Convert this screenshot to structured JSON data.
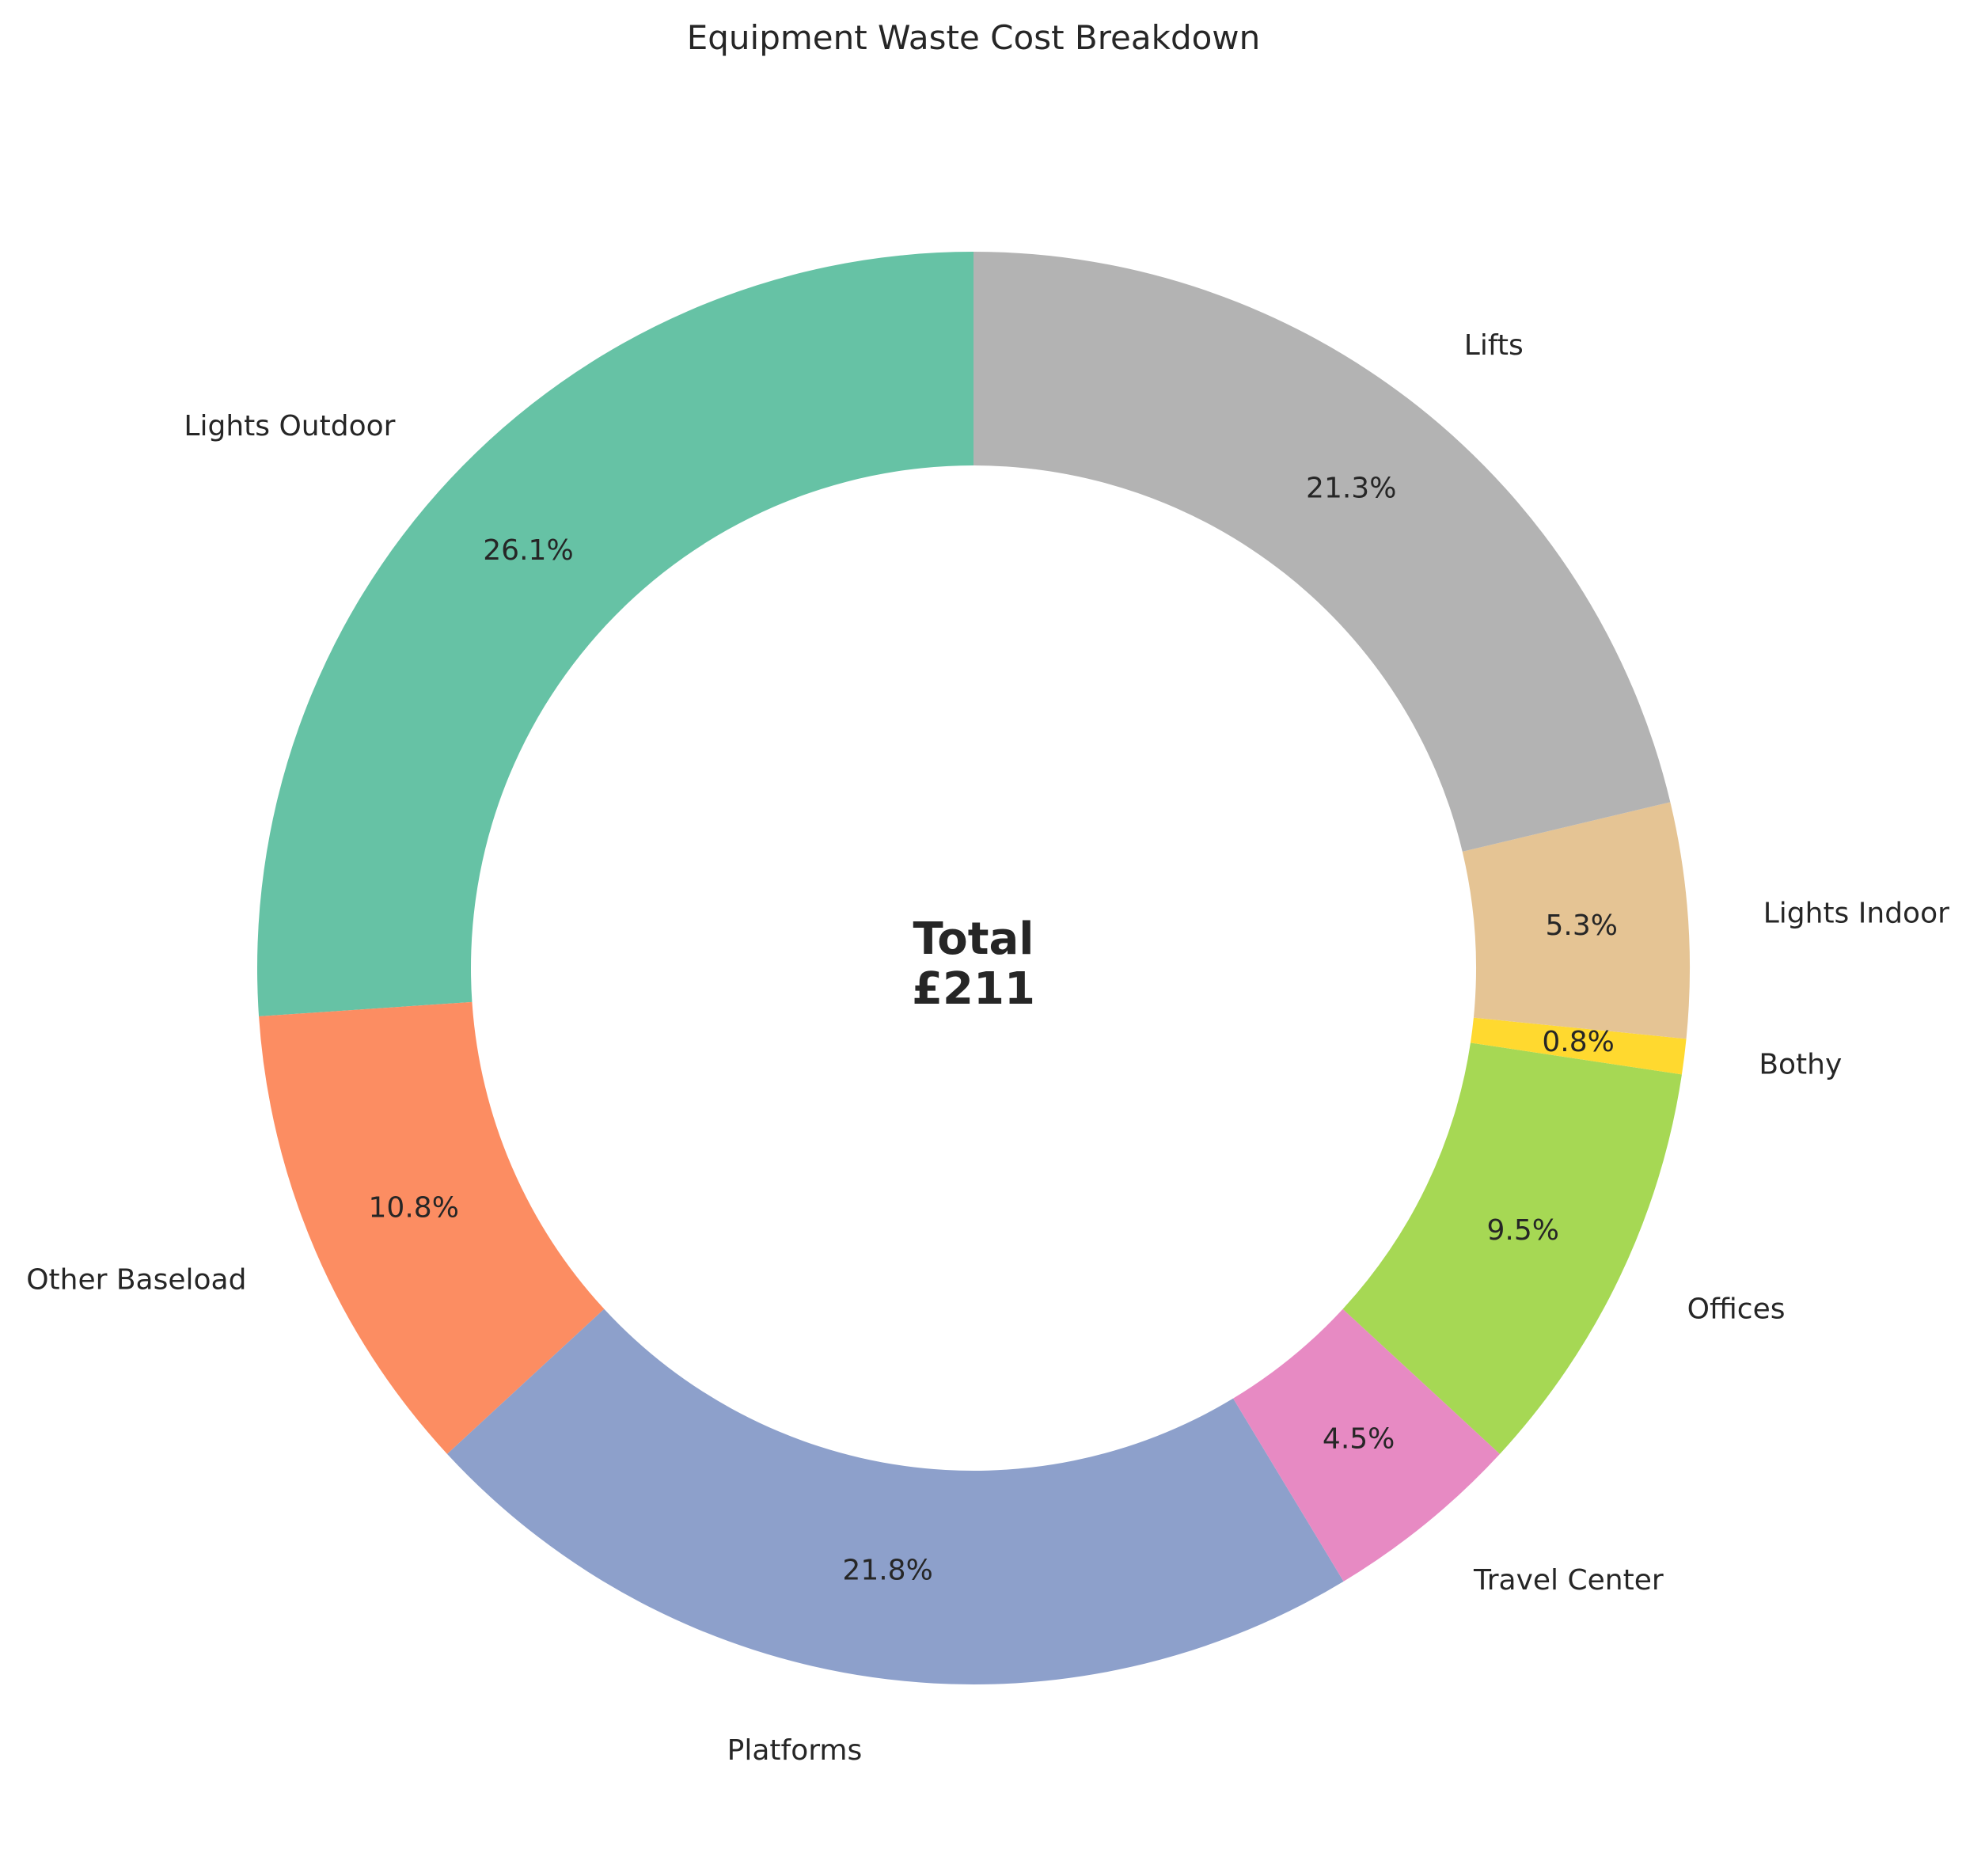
{
  "chart_data": {
    "type": "pie",
    "title": "Equipment Waste Cost Breakdown",
    "center_label": {
      "line1": "Total",
      "line2": "£211"
    },
    "slices": [
      {
        "label": "Lights Outdoor",
        "percent": 26.1,
        "pct_text": "26.1%",
        "color": "#66c2a5"
      },
      {
        "label": "Other Baseload",
        "percent": 10.8,
        "pct_text": "10.8%",
        "color": "#fc8d62"
      },
      {
        "label": "Platforms",
        "percent": 21.8,
        "pct_text": "21.8%",
        "color": "#8da0cb"
      },
      {
        "label": "Travel Center",
        "percent": 4.5,
        "pct_text": "4.5%",
        "color": "#e78ac3"
      },
      {
        "label": "Offices",
        "percent": 9.5,
        "pct_text": "9.5%",
        "color": "#a6d854"
      },
      {
        "label": "Bothy",
        "percent": 0.8,
        "pct_text": "0.8%",
        "color": "#ffd92f"
      },
      {
        "label": "Lights Indoor",
        "percent": 5.3,
        "pct_text": "5.3%",
        "color": "#e5c494"
      },
      {
        "label": "Lifts",
        "percent": 21.3,
        "pct_text": "21.3%",
        "color": "#b3b3b3"
      }
    ],
    "start_angle_deg": 90,
    "direction": "counterclockwise",
    "donut": true,
    "legend": "none"
  }
}
